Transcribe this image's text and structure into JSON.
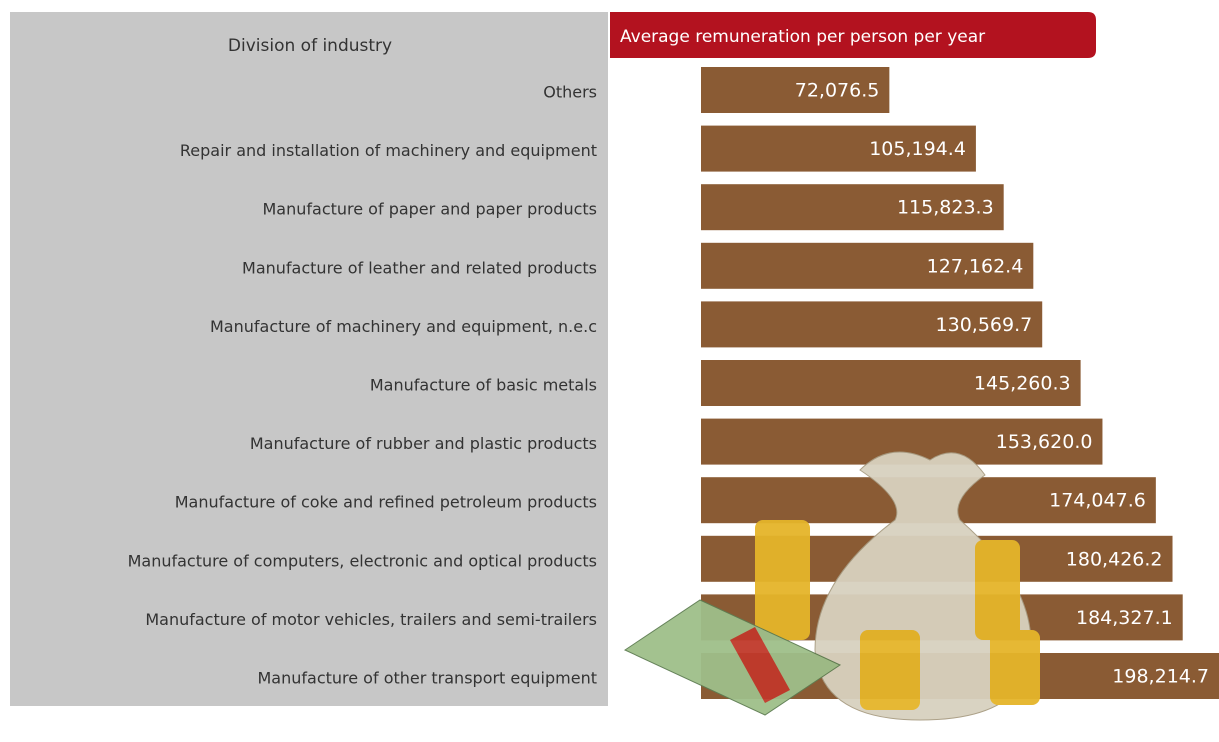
{
  "chart_data": {
    "type": "bar",
    "orientation": "horizontal",
    "category_label": "Division of industry",
    "value_label": "Average remuneration per person per year",
    "color": "#8a5b34",
    "header_color": "#b3121f",
    "categories": [
      "Others",
      "Repair and installation of machinery and equipment",
      "Manufacture of paper and paper products",
      "Manufacture of leather and related products",
      "Manufacture of machinery and equipment, n.e.c",
      "Manufacture of basic metals",
      "Manufacture of rubber and plastic products",
      "Manufacture of coke and refined petroleum products",
      "Manufacture of computers, electronic and optical products",
      "Manufacture of motor vehicles, trailers and semi-trailers",
      "Manufacture of other transport equipment"
    ],
    "values": [
      72076.5,
      105194.4,
      115823.3,
      127162.4,
      130569.7,
      145260.3,
      153620.0,
      174047.6,
      180426.2,
      184327.1,
      198214.7
    ],
    "value_labels": [
      "72,076.5",
      "105,194.4",
      "115,823.3",
      "127,162.4",
      "130,569.7",
      "145,260.3",
      "153,620.0",
      "174,047.6",
      "180,426.2",
      "184,327.1",
      "198,214.7"
    ]
  }
}
